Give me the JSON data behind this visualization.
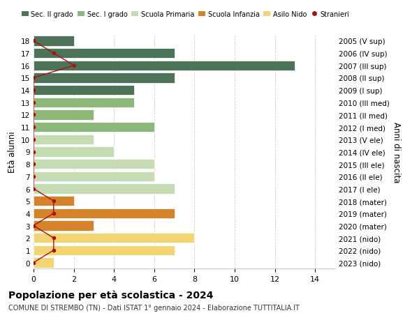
{
  "ages": [
    18,
    17,
    16,
    15,
    14,
    13,
    12,
    11,
    10,
    9,
    8,
    7,
    6,
    5,
    4,
    3,
    2,
    1,
    0
  ],
  "right_labels": [
    "2005 (V sup)",
    "2006 (IV sup)",
    "2007 (III sup)",
    "2008 (II sup)",
    "2009 (I sup)",
    "2010 (III med)",
    "2011 (II med)",
    "2012 (I med)",
    "2013 (V ele)",
    "2014 (IV ele)",
    "2015 (III ele)",
    "2016 (II ele)",
    "2017 (I ele)",
    "2018 (mater)",
    "2019 (mater)",
    "2020 (mater)",
    "2021 (nido)",
    "2022 (nido)",
    "2023 (nido)"
  ],
  "bar_values": [
    2,
    7,
    13,
    7,
    5,
    5,
    3,
    6,
    3,
    4,
    6,
    6,
    7,
    2,
    7,
    3,
    8,
    7,
    1
  ],
  "bar_colors": [
    "#4d7358",
    "#4d7358",
    "#4d7358",
    "#4d7358",
    "#4d7358",
    "#8db87a",
    "#8db87a",
    "#8db87a",
    "#c5dbb4",
    "#c5dbb4",
    "#c5dbb4",
    "#c5dbb4",
    "#c5dbb4",
    "#d4832a",
    "#d4832a",
    "#d4832a",
    "#f2d472",
    "#f2d472",
    "#f2d472"
  ],
  "stranieri_x": [
    0,
    1,
    2,
    0,
    0,
    0,
    0,
    0,
    0,
    0,
    0,
    0,
    0,
    1,
    1,
    0,
    1,
    1,
    0
  ],
  "legend_labels": [
    "Sec. II grado",
    "Sec. I grado",
    "Scuola Primaria",
    "Scuola Infanzia",
    "Asilo Nido",
    "Stranieri"
  ],
  "legend_colors": [
    "#4d7358",
    "#8db87a",
    "#c5dbb4",
    "#d4832a",
    "#f2d472",
    "#cc1111"
  ],
  "title": "Popolazione per età scolastica - 2024",
  "subtitle": "COMUNE DI STREMBO (TN) - Dati ISTAT 1° gennaio 2024 - Elaborazione TUTTITALIA.IT",
  "ylabel": "Età alunni",
  "right_ylabel": "Anni di nascita",
  "xlim": [
    0,
    15
  ],
  "xticks": [
    0,
    2,
    4,
    6,
    8,
    10,
    12,
    14
  ],
  "bar_height": 0.8,
  "stranieri_color": "#aa1111",
  "grid_color": "#cccccc",
  "bg_color": "#ffffff"
}
